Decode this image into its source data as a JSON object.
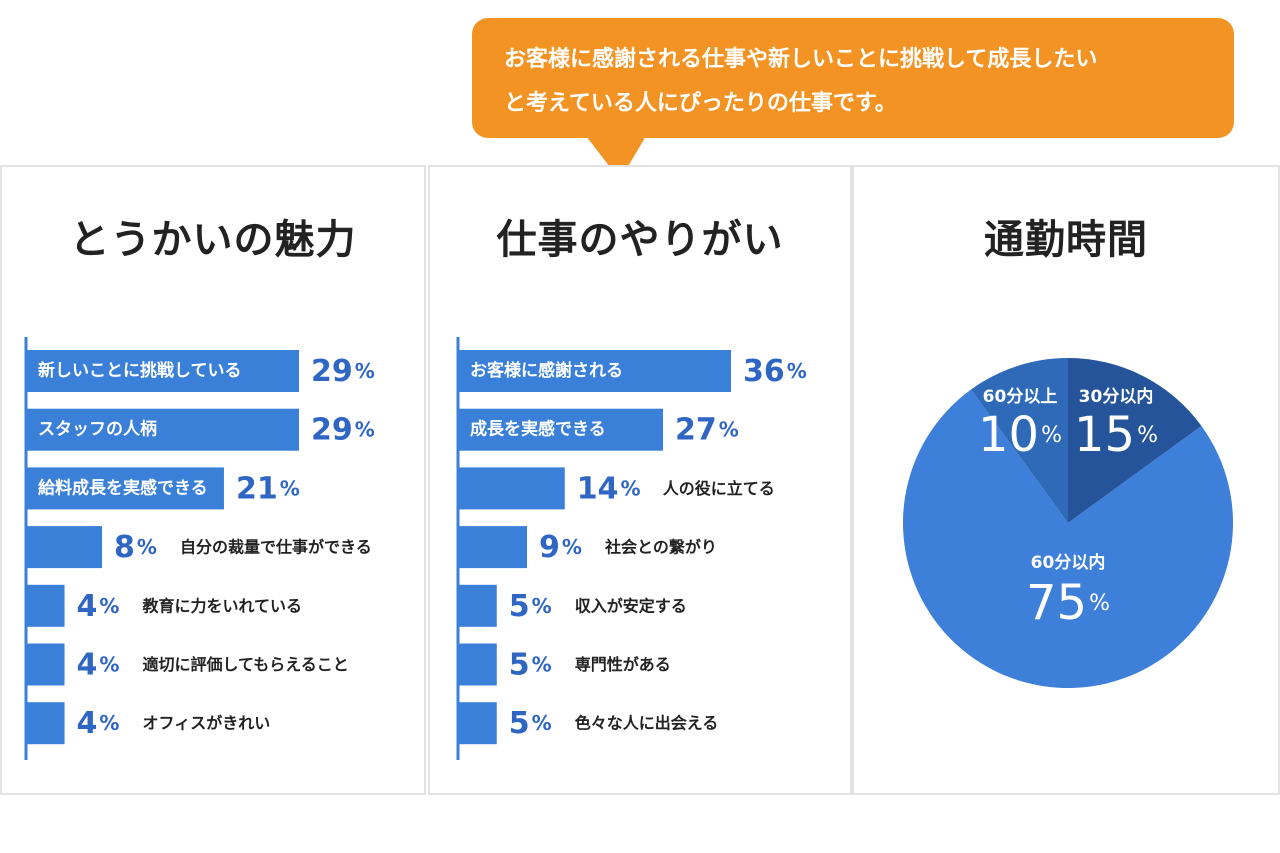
{
  "callout": {
    "lines": [
      "お客様に感謝される仕事や新しいことに挑戦して成長したい",
      "と考えている人にぴったりの仕事です。"
    ],
    "color": "#f39323"
  },
  "colors": {
    "bar": "#3a7fd8",
    "value_text": "#2f66c4",
    "label_inside": "#ffffff",
    "label_outside": "#222222",
    "pie_main": "#3d7fd9",
    "pie_dark": "#25549a",
    "pie_mid": "#2f6ab8"
  },
  "chart_data": [
    {
      "type": "bar",
      "orientation": "horizontal",
      "title": "とうかいの魅力",
      "unit": "%",
      "categories": [
        "新しいことに挑戦している",
        "スタッフの人柄",
        "給料成長を実感できる",
        "自分の裁量で仕事ができる",
        "教育に力をいれている",
        "適切に評価してもらえること",
        "オフィスがきれい"
      ],
      "values": [
        29,
        29,
        21,
        8,
        4,
        4,
        4
      ],
      "value_labels": [
        "29",
        "29",
        "21",
        "8",
        "4",
        "4",
        "4"
      ],
      "label_inside": [
        true,
        true,
        true,
        false,
        false,
        false,
        false
      ],
      "xlim": [
        0,
        29
      ]
    },
    {
      "type": "bar",
      "orientation": "horizontal",
      "title": "仕事のやりがい",
      "unit": "%",
      "categories": [
        "お客様に感謝される",
        "成長を実感できる",
        "人の役に立てる",
        "社会との繋がり",
        "収入が安定する",
        "専門性がある",
        "色々な人に出会える"
      ],
      "values": [
        36,
        27,
        14,
        9,
        5,
        5,
        5
      ],
      "value_labels": [
        "36",
        "27",
        "14",
        "9",
        "5",
        "5",
        "5"
      ],
      "label_inside": [
        true,
        true,
        false,
        false,
        false,
        false,
        false
      ],
      "xlim": [
        0,
        36
      ]
    },
    {
      "type": "pie",
      "title": "通勤時間",
      "unit": "%",
      "slices": [
        {
          "label": "30分以内",
          "value": 15,
          "value_label": "15",
          "color": "#25549a"
        },
        {
          "label": "60分以内",
          "value": 75,
          "value_label": "75",
          "color": "#3d7fd9"
        },
        {
          "label": "60分以上",
          "value": 10,
          "value_label": "10",
          "color": "#2f6ab8"
        }
      ]
    }
  ]
}
